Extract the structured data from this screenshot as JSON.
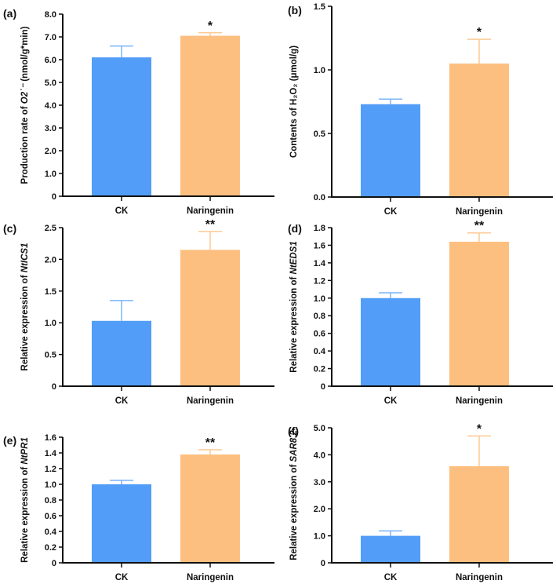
{
  "colors": {
    "ck": "#529DF7",
    "ck_err": "#7AB4F8",
    "naringenin": "#FDBF80",
    "naringenin_err": "#FCC994",
    "axis": "#111111"
  },
  "chart_data": [
    {
      "panel": "(a)",
      "type": "bar",
      "categories": [
        "CK",
        "Naringenin"
      ],
      "values": [
        6.1,
        7.05
      ],
      "errors": [
        0.5,
        0.13
      ],
      "significance": [
        "",
        "*"
      ],
      "ylabel": {
        "prefix": "Production rate of ",
        "italic": "O2˙⁻",
        "suffix": " (nmol/g*min)"
      },
      "ylim": [
        0,
        8
      ],
      "ticks": [
        0,
        1,
        2,
        3,
        4,
        5,
        6,
        7,
        8
      ],
      "tick_labels": [
        "0",
        "1.0",
        "2.0",
        "3.0",
        "4.0",
        "5.0",
        "6.0",
        "7.0",
        "8.0"
      ]
    },
    {
      "panel": "(b)",
      "type": "bar",
      "categories": [
        "CK",
        "Naringenin"
      ],
      "values": [
        0.73,
        1.05
      ],
      "errors": [
        0.04,
        0.19
      ],
      "significance": [
        "",
        "*"
      ],
      "ylabel": {
        "prefix": "Contents of H₂O₂ (μmol/g)",
        "italic": "",
        "suffix": ""
      },
      "ylim": [
        0,
        1.5
      ],
      "ticks": [
        0,
        0.5,
        1.0,
        1.5
      ],
      "tick_labels": [
        "0.0",
        "0.5",
        "1.0",
        "1.5"
      ]
    },
    {
      "panel": "(c)",
      "type": "bar",
      "categories": [
        "CK",
        "Naringenin"
      ],
      "values": [
        1.03,
        2.15
      ],
      "errors": [
        0.32,
        0.29
      ],
      "significance": [
        "",
        "**"
      ],
      "ylabel": {
        "prefix": "Relative expression of ",
        "italic": "NtICS1",
        "suffix": ""
      },
      "ylim": [
        0,
        2.5
      ],
      "ticks": [
        0,
        0.5,
        1.0,
        1.5,
        2.0,
        2.5
      ],
      "tick_labels": [
        "0",
        "0.5",
        "1.0",
        "1.5",
        "2.0",
        "2.5"
      ]
    },
    {
      "panel": "(d)",
      "type": "bar",
      "categories": [
        "CK",
        "Naringenin"
      ],
      "values": [
        1.0,
        1.64
      ],
      "errors": [
        0.06,
        0.1
      ],
      "significance": [
        "",
        "**"
      ],
      "ylabel": {
        "prefix": "Relative expression of ",
        "italic": "NtEDS1",
        "suffix": ""
      },
      "ylim": [
        0,
        1.8
      ],
      "ticks": [
        0,
        0.2,
        0.4,
        0.6,
        0.8,
        1.0,
        1.2,
        1.4,
        1.6,
        1.8
      ],
      "tick_labels": [
        "0",
        "0.2",
        "0.4",
        "0.6",
        "0.8",
        "1.0",
        "1.2",
        "1.4",
        "1.6",
        "1.8"
      ]
    },
    {
      "panel": "(e)",
      "type": "bar",
      "categories": [
        "CK",
        "Naringenin"
      ],
      "values": [
        1.0,
        1.38
      ],
      "errors": [
        0.05,
        0.06
      ],
      "significance": [
        "",
        "**"
      ],
      "ylabel": {
        "prefix": "Relative expression of ",
        "italic": "NtPR1",
        "suffix": ""
      },
      "ylim": [
        0,
        1.6
      ],
      "ticks": [
        0,
        0.2,
        0.4,
        0.6,
        0.8,
        1.0,
        1.2,
        1.4,
        1.6
      ],
      "tick_labels": [
        "0",
        "0.2",
        "0.4",
        "0.6",
        "0.8",
        "1.0",
        "1.2",
        "1.4",
        "1.6"
      ]
    },
    {
      "panel": "(f)",
      "type": "bar",
      "categories": [
        "CK",
        "Naringenin"
      ],
      "values": [
        1.0,
        3.58
      ],
      "errors": [
        0.18,
        1.12
      ],
      "significance": [
        "",
        "*"
      ],
      "ylabel": {
        "prefix": "Relative expression of ",
        "italic": "SAR8.2",
        "suffix": ""
      },
      "ylim": [
        0,
        5
      ],
      "ticks": [
        0,
        1,
        2,
        3,
        4,
        5
      ],
      "tick_labels": [
        "0",
        "1.0",
        "2.0",
        "3.0",
        "4.0",
        "5.0"
      ]
    }
  ]
}
